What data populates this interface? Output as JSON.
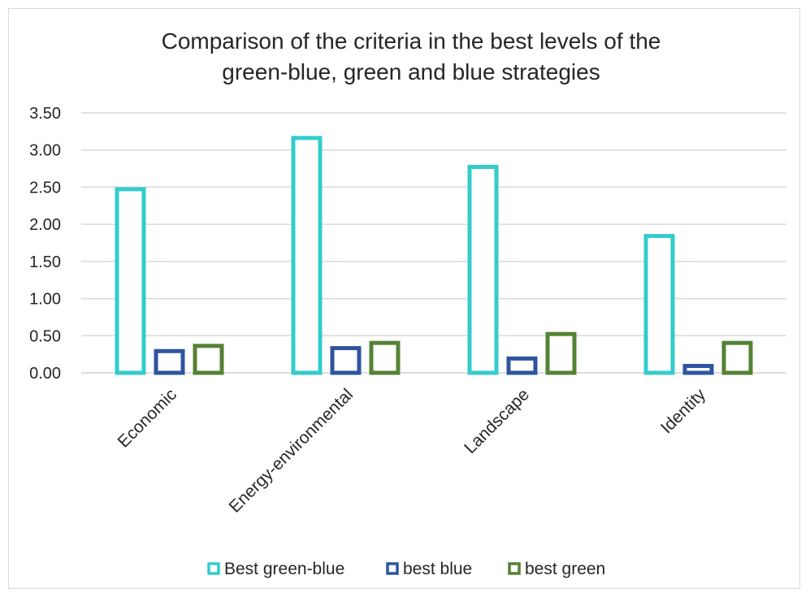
{
  "chart_data": {
    "type": "bar",
    "title_lines": [
      "Comparison of the criteria in the best levels of the",
      "green-blue, green and blue strategies"
    ],
    "categories": [
      "Economic",
      "Energy-environmental",
      "Landscape",
      "Identity"
    ],
    "series": [
      {
        "name": "Best green-blue",
        "color": "#33cccc",
        "values": [
          2.5,
          3.19,
          2.8,
          1.87
        ]
      },
      {
        "name": "best blue",
        "color": "#2e54a0",
        "values": [
          0.32,
          0.36,
          0.22,
          0.12
        ]
      },
      {
        "name": "best green",
        "color": "#548235",
        "values": [
          0.39,
          0.43,
          0.55,
          0.43
        ]
      }
    ],
    "yticks": [
      "0.00",
      "0.50",
      "1.00",
      "1.50",
      "2.00",
      "2.50",
      "3.00",
      "3.50"
    ],
    "ylim": [
      0,
      3.5
    ],
    "grid": true,
    "legend_position": "bottom"
  }
}
